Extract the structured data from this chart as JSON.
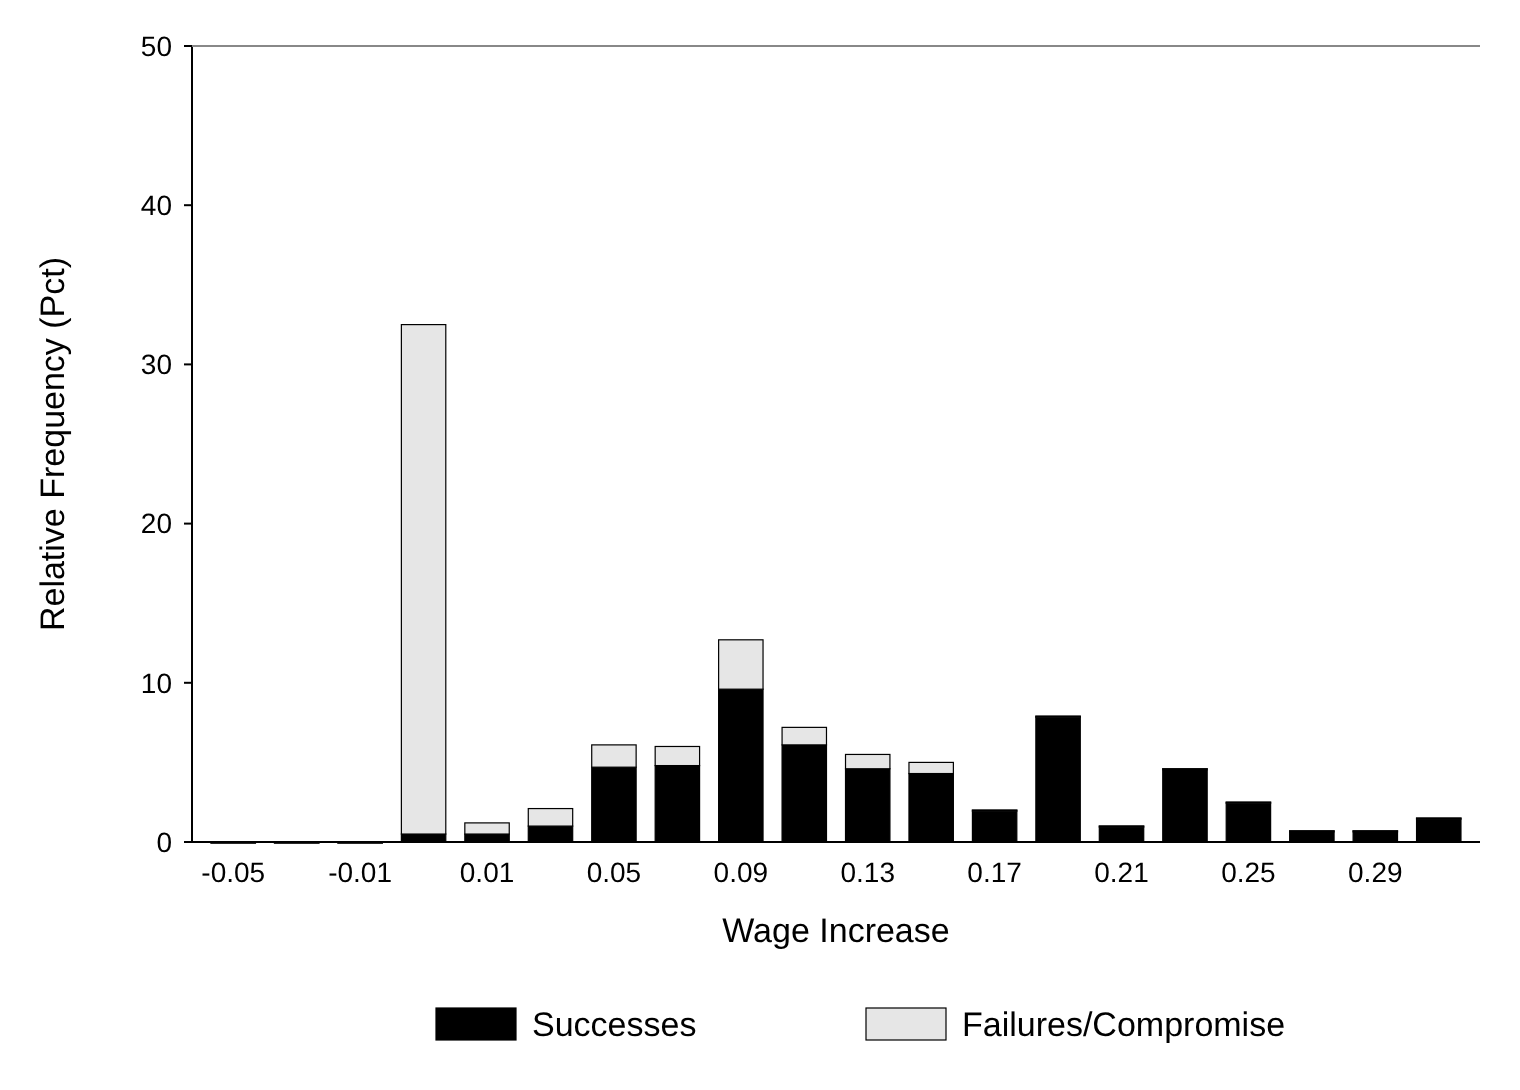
{
  "chart_data": {
    "type": "bar",
    "stacked": true,
    "xlabel": "Wage Increase",
    "ylabel": "Relative Frequency (Pct)",
    "categories": [
      "-0.05",
      null,
      "-0.01",
      null,
      "0.01",
      null,
      "0.05",
      null,
      "0.09",
      null,
      "0.13",
      null,
      "0.17",
      null,
      "0.21",
      null,
      "0.25",
      null,
      "0.29",
      null
    ],
    "series": [
      {
        "name": "Successes",
        "color": "#000000",
        "values": [
          0,
          0,
          0,
          0.5,
          0.5,
          1.0,
          4.7,
          4.8,
          9.6,
          6.1,
          4.6,
          4.3,
          2.0,
          7.9,
          1.0,
          4.6,
          2.5,
          0.7,
          0.7,
          1.5
        ]
      },
      {
        "name": "Failures/Compromise",
        "color": "#e6e6e6",
        "values": [
          0,
          0,
          0,
          32,
          0.7,
          1.1,
          1.4,
          1.2,
          3.1,
          1.1,
          0.9,
          0.7,
          0,
          0,
          0,
          0,
          0,
          0,
          0,
          0
        ]
      }
    ],
    "ylim": [
      0,
      50
    ],
    "yticks": [
      0,
      10,
      20,
      30,
      40,
      50
    ],
    "grid": false,
    "legend": "bottom"
  }
}
